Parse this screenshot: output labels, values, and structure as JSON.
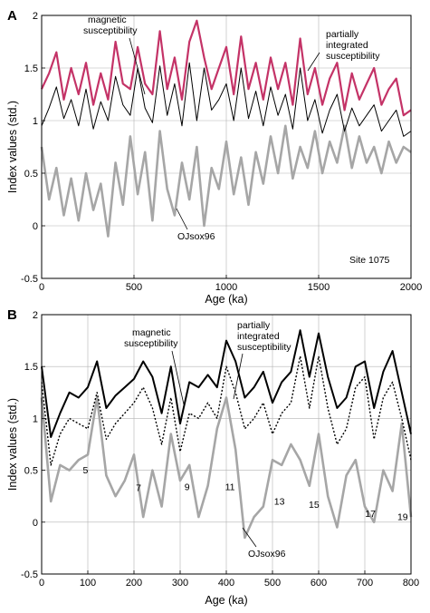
{
  "chart_data": [
    {
      "panel_label": "A",
      "type": "line",
      "xlabel": "Age (ka)",
      "ylabel": "Index values (std.)",
      "xlim": [
        0,
        2000
      ],
      "ylim": [
        -0.5,
        2
      ],
      "xticks": [
        "0",
        "500",
        "1000",
        "1500",
        "2000"
      ],
      "yticks": [
        "-0.5",
        "0",
        "0.5",
        "1",
        "1.5",
        "2"
      ],
      "grid": true,
      "site_label": "Site 1075",
      "annotations": [
        {
          "text_lines": [
            "magnetic",
            "susceptibility"
          ]
        },
        {
          "text_lines": [
            "partially",
            "integrated",
            "susceptibility"
          ]
        },
        {
          "text_lines": [
            "OJsox96"
          ]
        }
      ],
      "series": [
        {
          "id": "magsus",
          "color": "#000000",
          "x": [
            0,
            40,
            80,
            120,
            160,
            200,
            240,
            280,
            320,
            360,
            400,
            440,
            480,
            520,
            560,
            600,
            640,
            680,
            720,
            760,
            800,
            840,
            880,
            920,
            960,
            1000,
            1040,
            1080,
            1120,
            1160,
            1200,
            1240,
            1280,
            1320,
            1360,
            1400,
            1440,
            1480,
            1520,
            1560,
            1600,
            1640,
            1680,
            1720,
            1760,
            1800,
            1840,
            1880,
            1920,
            1960,
            2000
          ],
          "y": [
            0.95,
            1.12,
            1.32,
            1.02,
            1.2,
            0.95,
            1.3,
            0.92,
            1.18,
            1.0,
            1.42,
            1.15,
            1.05,
            1.5,
            1.12,
            0.98,
            1.52,
            1.05,
            1.35,
            0.95,
            1.55,
            1.0,
            1.5,
            1.1,
            1.2,
            1.35,
            1.0,
            1.5,
            1.02,
            1.28,
            0.95,
            1.32,
            1.05,
            1.25,
            0.92,
            1.5,
            1.0,
            1.2,
            0.88,
            1.1,
            1.25,
            0.9,
            1.12,
            0.95,
            1.05,
            1.15,
            0.9,
            1.0,
            1.1,
            0.85,
            0.9
          ]
        },
        {
          "id": "pis",
          "color": "#c43367",
          "x": [
            0,
            40,
            80,
            120,
            160,
            200,
            240,
            280,
            320,
            360,
            400,
            440,
            480,
            520,
            560,
            600,
            640,
            680,
            720,
            760,
            800,
            840,
            880,
            920,
            960,
            1000,
            1040,
            1080,
            1120,
            1160,
            1200,
            1240,
            1280,
            1320,
            1360,
            1400,
            1440,
            1480,
            1520,
            1560,
            1600,
            1640,
            1680,
            1720,
            1760,
            1800,
            1840,
            1880,
            1920,
            1960,
            2000
          ],
          "y": [
            1.3,
            1.45,
            1.65,
            1.2,
            1.5,
            1.25,
            1.55,
            1.15,
            1.45,
            1.2,
            1.75,
            1.35,
            1.3,
            1.7,
            1.35,
            1.25,
            1.85,
            1.3,
            1.6,
            1.2,
            1.75,
            1.95,
            1.6,
            1.3,
            1.5,
            1.7,
            1.25,
            1.8,
            1.3,
            1.55,
            1.2,
            1.6,
            1.3,
            1.55,
            1.15,
            1.78,
            1.25,
            1.5,
            1.15,
            1.4,
            1.55,
            1.1,
            1.45,
            1.2,
            1.35,
            1.5,
            1.15,
            1.3,
            1.4,
            1.05,
            1.1
          ]
        },
        {
          "id": "ojsox96",
          "color": "#a6a6a6",
          "x": [
            0,
            40,
            80,
            120,
            160,
            200,
            240,
            280,
            320,
            360,
            400,
            440,
            480,
            520,
            560,
            600,
            640,
            680,
            720,
            760,
            800,
            840,
            880,
            920,
            960,
            1000,
            1040,
            1080,
            1120,
            1160,
            1200,
            1240,
            1280,
            1320,
            1360,
            1400,
            1440,
            1480,
            1520,
            1560,
            1600,
            1640,
            1680,
            1720,
            1760,
            1800,
            1840,
            1880,
            1920,
            1960,
            2000
          ],
          "y": [
            0.75,
            0.25,
            0.55,
            0.1,
            0.45,
            0.05,
            0.5,
            0.15,
            0.4,
            -0.1,
            0.6,
            0.2,
            0.85,
            0.3,
            0.7,
            0.05,
            0.9,
            0.35,
            0.1,
            0.6,
            0.25,
            0.75,
            0.0,
            0.55,
            0.35,
            0.8,
            0.3,
            0.65,
            0.2,
            0.7,
            0.4,
            0.85,
            0.5,
            0.95,
            0.45,
            0.75,
            0.55,
            0.9,
            0.5,
            0.8,
            0.6,
            0.95,
            0.55,
            0.85,
            0.6,
            0.75,
            0.5,
            0.8,
            0.6,
            0.75,
            0.7
          ]
        }
      ]
    },
    {
      "panel_label": "B",
      "type": "line",
      "xlabel": "Age (ka)",
      "ylabel": "Index values (std.)",
      "xlim": [
        0,
        800
      ],
      "ylim": [
        -0.5,
        2
      ],
      "xticks": [
        "0",
        "100",
        "200",
        "300",
        "400",
        "500",
        "600",
        "700",
        "800"
      ],
      "yticks": [
        "-0.5",
        "0",
        "0.5",
        "1",
        "1.5",
        "2"
      ],
      "grid": true,
      "annotations": [
        {
          "text_lines": [
            "magnetic",
            "susceptibility"
          ]
        },
        {
          "text_lines": [
            "partially",
            "integrated",
            "susceptibility"
          ]
        },
        {
          "text_lines": [
            "OJsox96"
          ]
        }
      ],
      "stage_labels": [
        {
          "text": "5",
          "x": 95,
          "y": 0.47
        },
        {
          "text": "7",
          "x": 210,
          "y": 0.3
        },
        {
          "text": "9",
          "x": 315,
          "y": 0.31
        },
        {
          "text": "11",
          "x": 408,
          "y": 0.31
        },
        {
          "text": "13",
          "x": 515,
          "y": 0.17
        },
        {
          "text": "15",
          "x": 590,
          "y": 0.14
        },
        {
          "text": "17",
          "x": 712,
          "y": 0.05
        },
        {
          "text": "19",
          "x": 782,
          "y": 0.02
        }
      ],
      "series": [
        {
          "id": "magsus",
          "style": "solid",
          "color": "#000000",
          "x": [
            0,
            20,
            40,
            60,
            80,
            100,
            120,
            140,
            160,
            180,
            200,
            220,
            240,
            260,
            280,
            300,
            320,
            340,
            360,
            380,
            400,
            420,
            440,
            460,
            480,
            500,
            520,
            540,
            560,
            580,
            600,
            620,
            640,
            660,
            680,
            700,
            720,
            740,
            760,
            780,
            800
          ],
          "y": [
            1.5,
            0.82,
            1.05,
            1.25,
            1.2,
            1.3,
            1.55,
            1.1,
            1.22,
            1.3,
            1.38,
            1.55,
            1.4,
            1.05,
            1.5,
            0.95,
            1.35,
            1.3,
            1.42,
            1.3,
            1.75,
            1.55,
            1.2,
            1.3,
            1.45,
            1.15,
            1.35,
            1.45,
            1.85,
            1.4,
            1.82,
            1.4,
            1.1,
            1.2,
            1.5,
            1.55,
            1.1,
            1.45,
            1.65,
            1.25,
            0.85
          ]
        },
        {
          "id": "pis",
          "style": "dotted",
          "color": "#000000",
          "x": [
            0,
            20,
            40,
            60,
            80,
            100,
            120,
            140,
            160,
            180,
            200,
            220,
            240,
            260,
            280,
            300,
            320,
            340,
            360,
            380,
            400,
            420,
            440,
            460,
            480,
            500,
            520,
            540,
            560,
            580,
            600,
            620,
            640,
            660,
            680,
            700,
            720,
            740,
            760,
            780,
            800
          ],
          "y": [
            1.35,
            0.55,
            0.85,
            1.0,
            0.95,
            0.9,
            1.25,
            0.8,
            0.95,
            1.05,
            1.15,
            1.3,
            1.1,
            0.75,
            1.2,
            0.68,
            1.05,
            1.0,
            1.15,
            1.0,
            1.5,
            1.25,
            0.9,
            1.0,
            1.15,
            0.85,
            1.05,
            1.15,
            1.6,
            1.1,
            1.6,
            1.1,
            0.75,
            0.9,
            1.3,
            1.4,
            0.8,
            1.2,
            1.35,
            1.0,
            0.6
          ]
        },
        {
          "id": "ojsox96",
          "style": "solid",
          "color": "#a6a6a6",
          "x": [
            0,
            20,
            40,
            60,
            80,
            100,
            120,
            140,
            160,
            180,
            200,
            220,
            240,
            260,
            280,
            300,
            320,
            340,
            360,
            380,
            400,
            420,
            440,
            460,
            480,
            500,
            520,
            540,
            560,
            580,
            600,
            620,
            640,
            660,
            680,
            700,
            720,
            740,
            760,
            780,
            800
          ],
          "y": [
            1.2,
            0.2,
            0.55,
            0.5,
            0.6,
            0.65,
            1.2,
            0.45,
            0.25,
            0.4,
            0.65,
            0.05,
            0.5,
            0.15,
            0.85,
            0.4,
            0.55,
            0.05,
            0.35,
            0.9,
            1.2,
            0.7,
            -0.15,
            0.05,
            0.15,
            0.6,
            0.55,
            0.75,
            0.6,
            0.35,
            0.85,
            0.25,
            -0.05,
            0.45,
            0.6,
            0.15,
            0.0,
            0.5,
            0.3,
            0.95,
            0.05
          ]
        }
      ]
    }
  ]
}
